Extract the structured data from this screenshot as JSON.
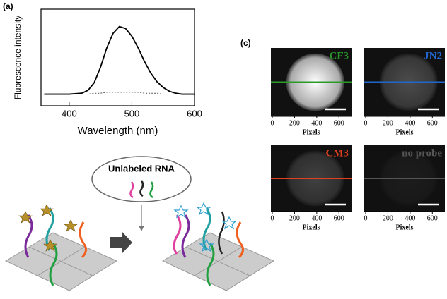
{
  "panel_labels": [
    "(a)",
    "(c)"
  ],
  "diagram": {
    "label": "Unlabeled RNA"
  },
  "chart_data": [
    {
      "type": "line",
      "xlabel": "Wavelength (nm)",
      "ylabel": "Fluorescence intensity",
      "x": [
        360,
        380,
        400,
        420,
        430,
        440,
        450,
        460,
        470,
        480,
        490,
        500,
        510,
        520,
        530,
        540,
        550,
        560,
        570,
        580,
        590,
        600
      ],
      "series": [
        {
          "color": "#000000",
          "style": "solid",
          "values": [
            0.12,
            0.12,
            0.12,
            0.13,
            0.16,
            0.24,
            0.4,
            0.6,
            0.75,
            0.82,
            0.8,
            0.72,
            0.6,
            0.46,
            0.34,
            0.25,
            0.19,
            0.15,
            0.13,
            0.12,
            0.12,
            0.12
          ]
        },
        {
          "color": "#555555",
          "style": "dotted",
          "values": [
            0.12,
            0.12,
            0.12,
            0.12,
            0.12,
            0.13,
            0.13,
            0.14,
            0.14,
            0.14,
            0.14,
            0.14,
            0.14,
            0.13,
            0.13,
            0.13,
            0.12,
            0.12,
            0.12,
            0.12,
            0.12,
            0.12
          ]
        }
      ],
      "xlim": [
        355,
        600
      ],
      "xticks": [
        400,
        500,
        600
      ],
      "ylim": [
        0,
        1
      ]
    },
    {
      "type": "image",
      "label": "CF3",
      "color": "#2a9a2a",
      "xlabel": "Pixels",
      "xlim": [
        0,
        700
      ],
      "xticks": [
        0,
        200,
        400,
        600
      ]
    },
    {
      "type": "image",
      "label": "JN2",
      "color": "#2266cc",
      "xlabel": "Pixels",
      "xlim": [
        0,
        700
      ],
      "xticks": [
        0,
        200,
        400,
        600
      ]
    },
    {
      "type": "image",
      "label": "CM3",
      "color": "#e04020",
      "xlabel": "Pixels",
      "xlim": [
        0,
        700
      ],
      "xticks": [
        0,
        200,
        400,
        600
      ]
    },
    {
      "type": "image",
      "label": "no probe",
      "color": "#555555",
      "xlabel": "Pixels",
      "xlim": [
        0,
        700
      ],
      "xticks": [
        0,
        200,
        400,
        600
      ]
    }
  ]
}
